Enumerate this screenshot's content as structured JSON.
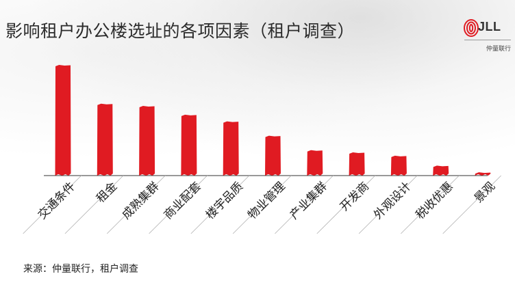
{
  "title": "影响租户办公楼选址的各项因素（租户调查）",
  "logo": {
    "brand": "JLL",
    "subtitle": "仲量联行"
  },
  "source": "来源：仲量联行，租户调查",
  "colors": {
    "bar": "#e01b22",
    "axis": "#333333",
    "title": "#2b2b2b"
  },
  "chart_data": {
    "type": "bar",
    "title": "影响租户办公楼选址的各项因素（租户调查）",
    "xlabel": "",
    "ylabel": "",
    "categories": [
      "交通条件",
      "租金",
      "成熟集群",
      "商业配套",
      "楼宇品质",
      "物业管理",
      "产业集群",
      "开发商",
      "外观设计",
      "税收优惠",
      "景观"
    ],
    "values": [
      100,
      65,
      63,
      55,
      49,
      36,
      23,
      21,
      18,
      9,
      3
    ],
    "ylim": [
      0,
      100
    ],
    "grid": false,
    "legend": "none"
  }
}
